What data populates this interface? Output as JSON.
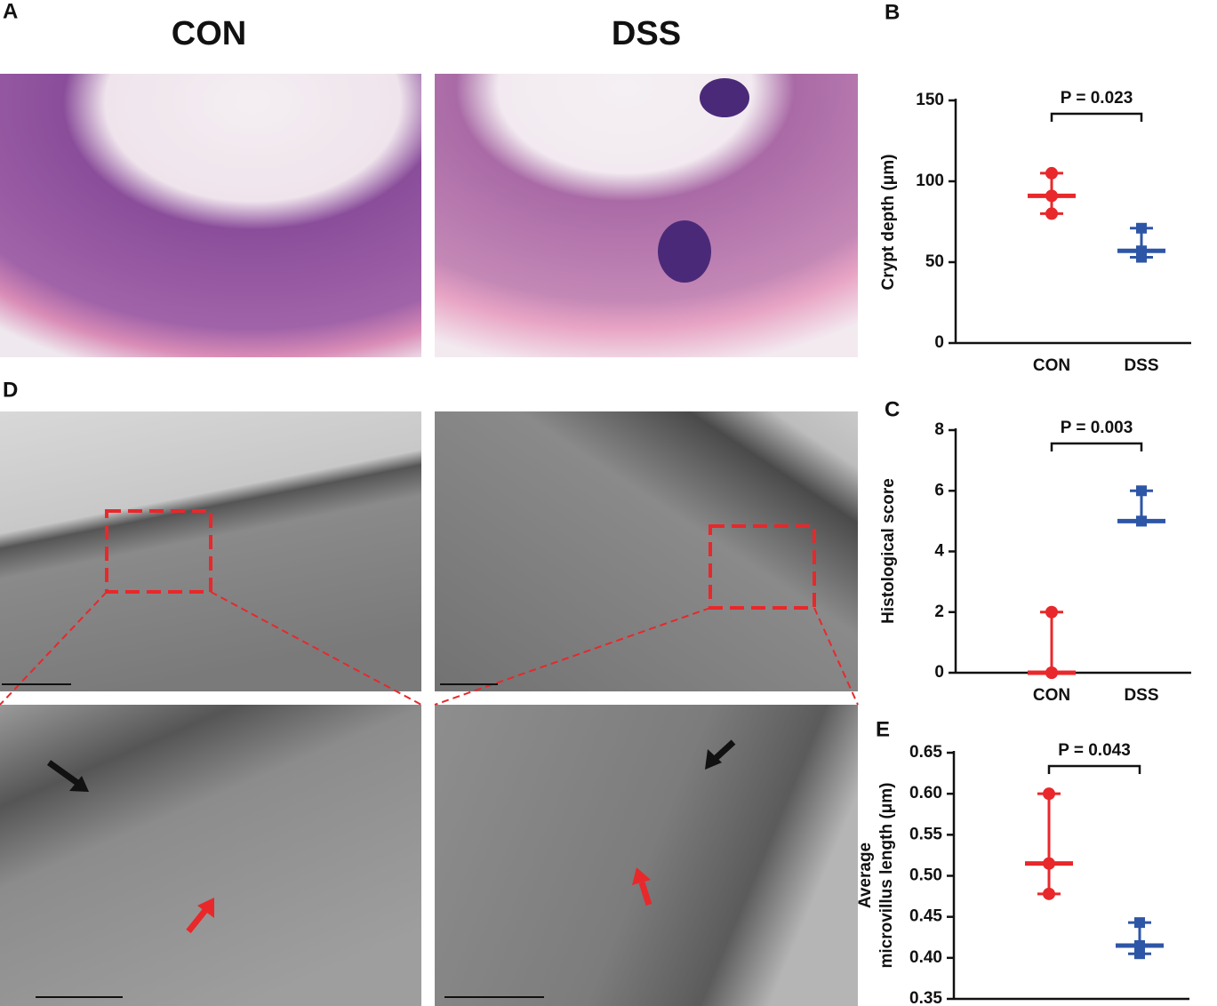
{
  "panels": {
    "a": "A",
    "d": "D",
    "con_heading": "CON",
    "dss_heading": "DSS"
  },
  "chart_data": [
    {
      "type": "dot",
      "panel": "B",
      "ylabel": [
        "Crypt depth (μm)"
      ],
      "annotation": "P = 0.023",
      "categories": [
        "CON",
        "DSS"
      ],
      "colors": [
        "#e8282b",
        "#2e56a6"
      ],
      "values": [
        [
          105,
          91,
          80
        ],
        [
          71,
          57,
          53
        ]
      ],
      "medians": [
        91,
        57
      ],
      "ylim": [
        0,
        150
      ],
      "yticks": [
        0,
        50,
        100,
        150
      ]
    },
    {
      "type": "dot",
      "panel": "C",
      "ylabel": [
        "Histological score"
      ],
      "annotation": "P = 0.003",
      "categories": [
        "CON",
        "DSS"
      ],
      "colors": [
        "#e8282b",
        "#2e56a6"
      ],
      "values": [
        [
          2,
          0,
          0
        ],
        [
          6,
          5,
          5
        ]
      ],
      "medians": [
        0,
        5
      ],
      "ylim": [
        0,
        8
      ],
      "yticks": [
        0,
        2,
        4,
        6,
        8
      ]
    },
    {
      "type": "dot",
      "panel": "E",
      "ylabel": [
        "Average",
        "microvillus length (μm)"
      ],
      "annotation": "P = 0.043",
      "categories": [
        "CON",
        "DSS"
      ],
      "colors": [
        "#e8282b",
        "#2e56a6"
      ],
      "values": [
        [
          0.6,
          0.515,
          0.478
        ],
        [
          0.443,
          0.415,
          0.405
        ]
      ],
      "medians": [
        0.515,
        0.415
      ],
      "ylim": [
        0.35,
        0.65
      ],
      "yticks": [
        0.35,
        {
          "value": 0.4,
          "label": "0.40"
        },
        0.45,
        {
          "value": 0.5,
          "label": "0.50"
        },
        0.55,
        {
          "value": 0.6,
          "label": "0.60"
        },
        0.65
      ]
    }
  ]
}
